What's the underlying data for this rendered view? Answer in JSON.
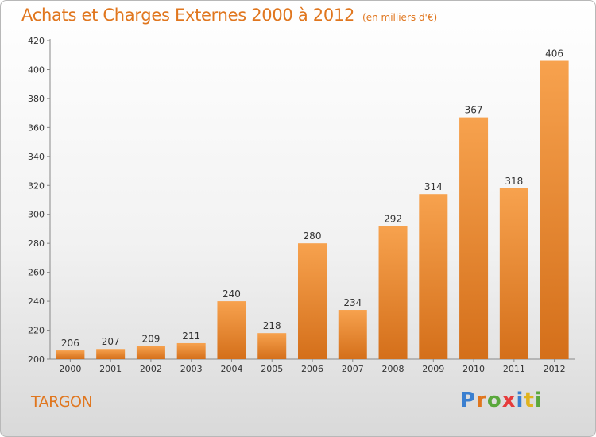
{
  "header": {
    "title": "Achats et Charges Externes 2000 à 2012",
    "unit": "(en milliers d'€)"
  },
  "footer": {
    "commune": "TARGON",
    "logo": "Proxiti"
  },
  "colors": {
    "accent": "#e0761e",
    "bar_top": "#f7a24e",
    "bar_bottom": "#d46f1a"
  },
  "chart_data": {
    "type": "bar",
    "title": "Achats et Charges Externes 2000 à 2012",
    "subtitle": "(en milliers d'€)",
    "xlabel": "",
    "ylabel": "",
    "categories": [
      "2000",
      "2001",
      "2002",
      "2003",
      "2004",
      "2005",
      "2006",
      "2007",
      "2008",
      "2009",
      "2010",
      "2011",
      "2012"
    ],
    "values": [
      206,
      207,
      209,
      211,
      240,
      218,
      280,
      234,
      292,
      314,
      367,
      318,
      406
    ],
    "ylim": [
      200,
      420
    ],
    "yticks": [
      200,
      220,
      240,
      260,
      280,
      300,
      320,
      340,
      360,
      380,
      400,
      420
    ],
    "grid": false,
    "legend": "none"
  }
}
